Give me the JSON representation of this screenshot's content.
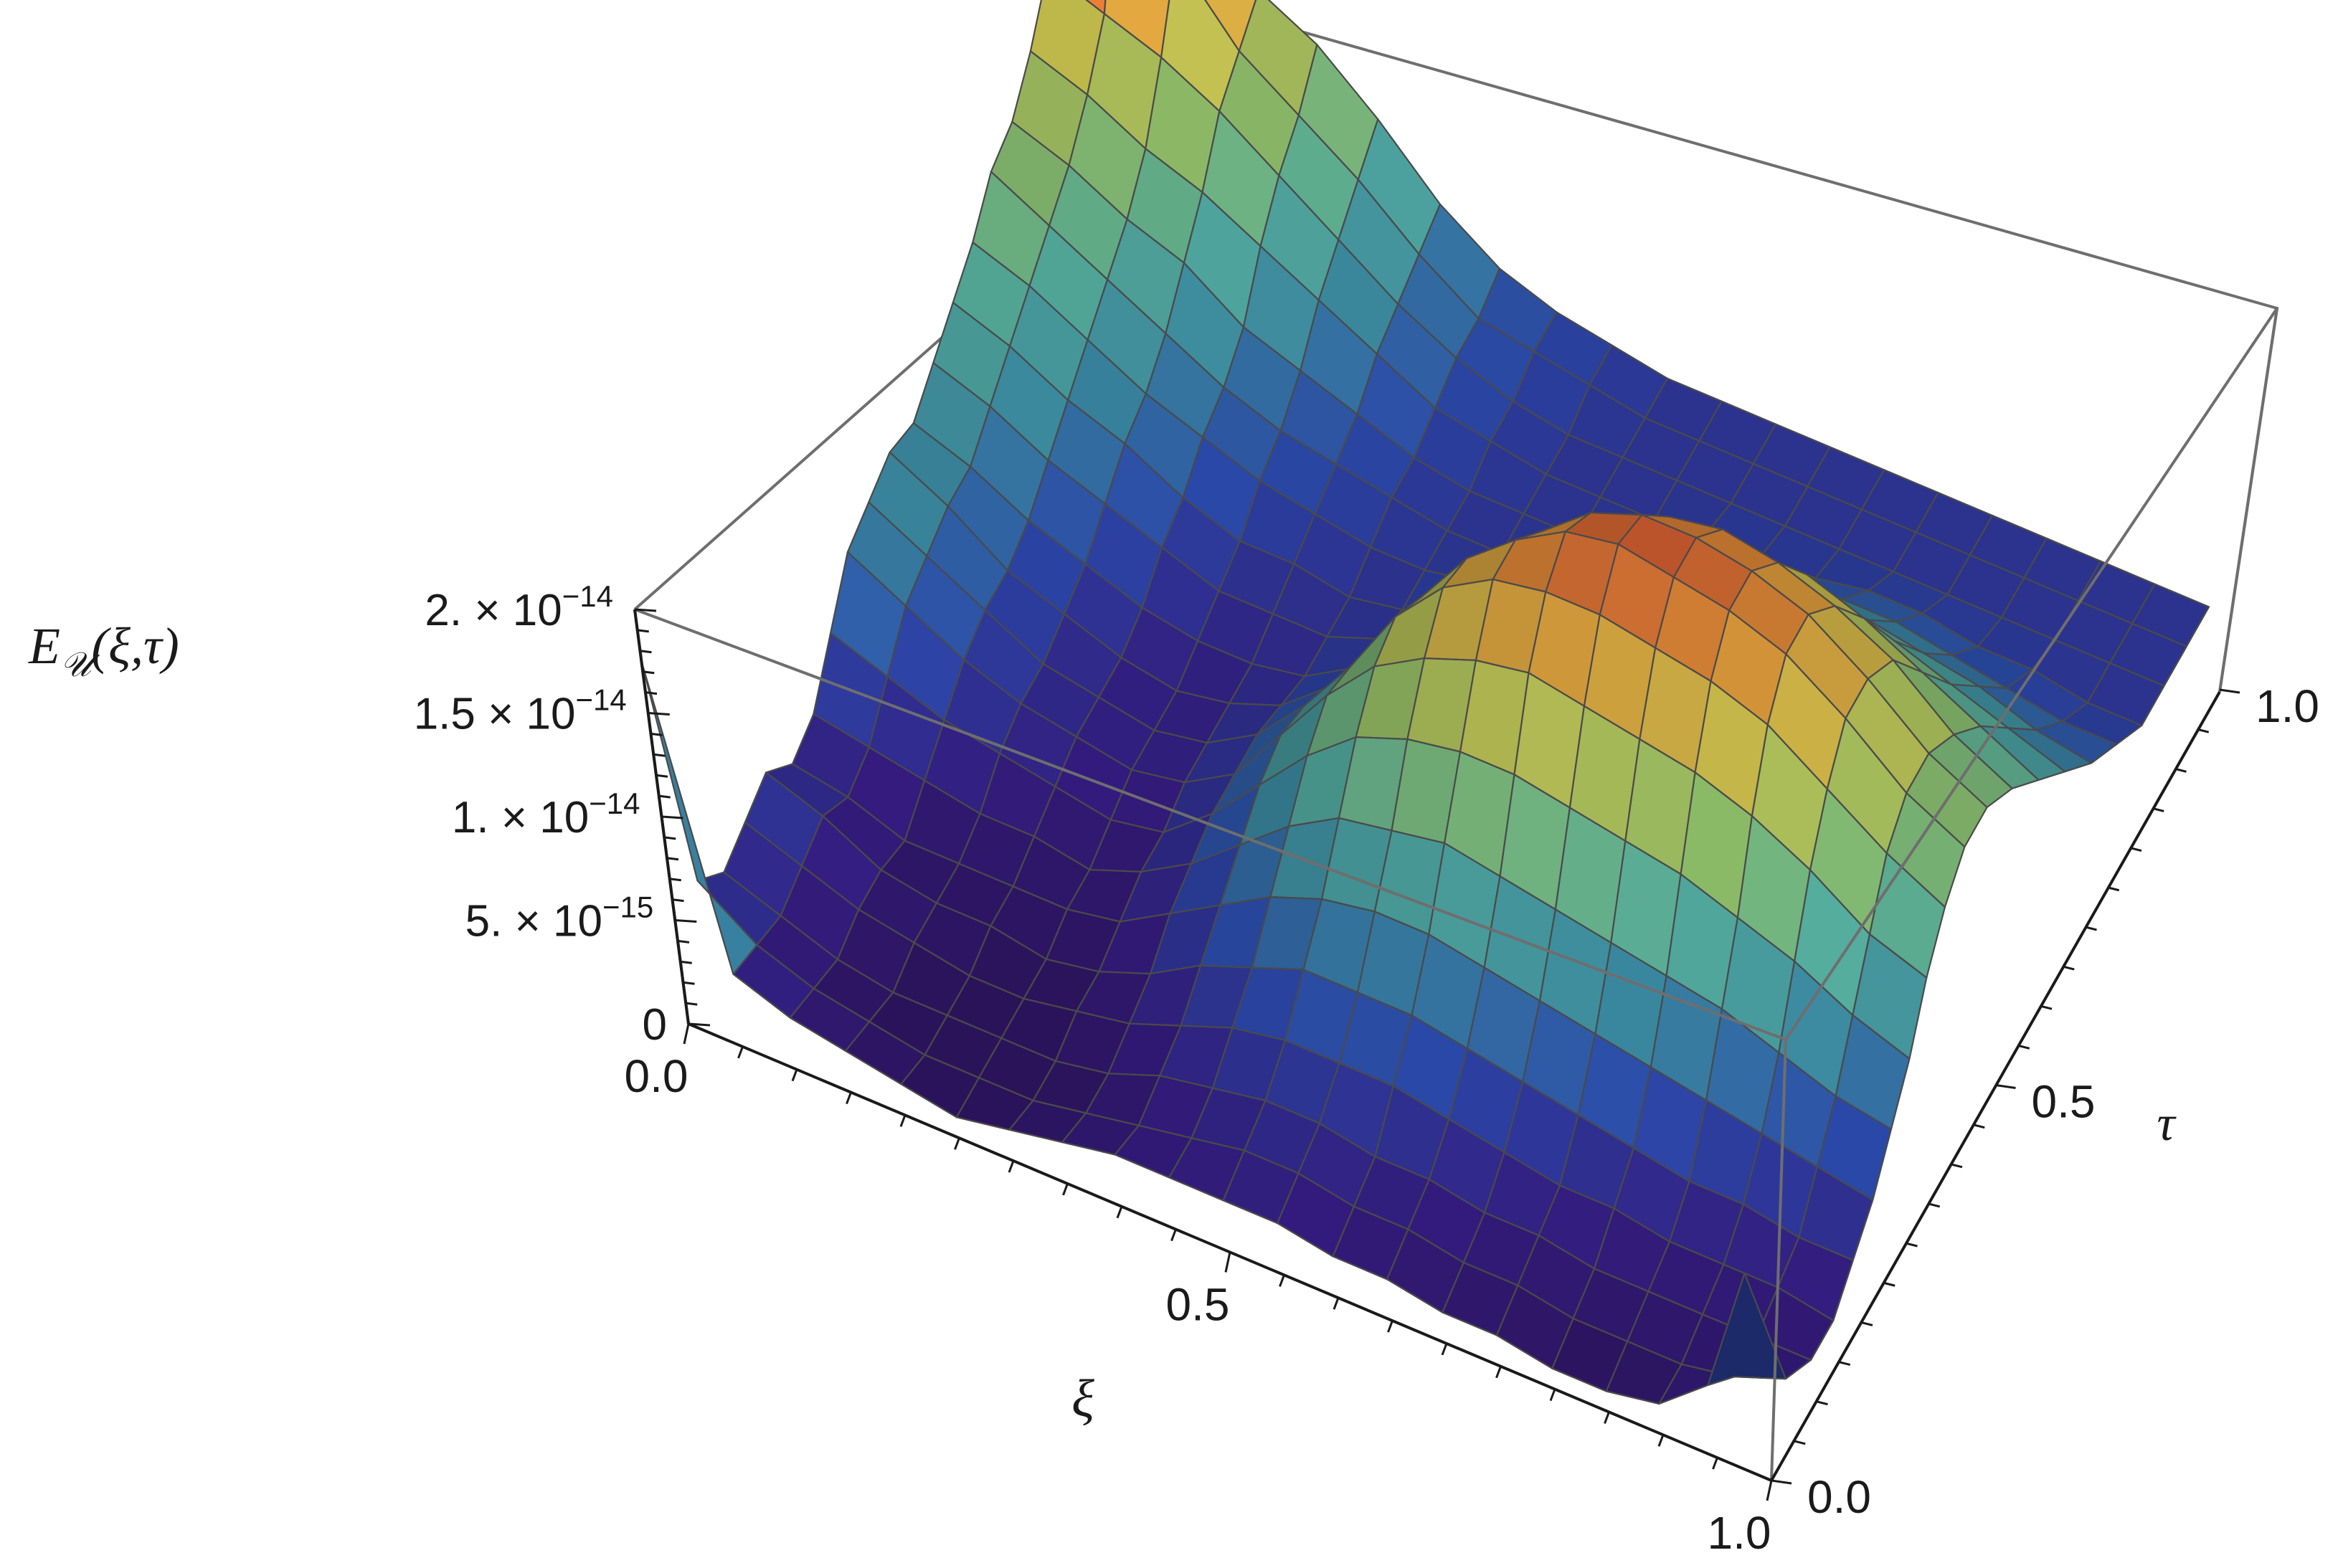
{
  "chart_data": {
    "type": "surface3d",
    "zlabel_main": "E",
    "zlabel_sub": "𝒰",
    "zlabel_args": "(ξ,τ)",
    "xlabel": "ξ",
    "ylabel": "τ",
    "xlim": [
      0,
      1
    ],
    "ylim": [
      0,
      1
    ],
    "zlim": [
      0,
      2e-14
    ],
    "x_ticks": [
      {
        "value": 0.0,
        "label": "0.0"
      },
      {
        "value": 0.5,
        "label": "0.5"
      },
      {
        "value": 1.0,
        "label": "1.0"
      }
    ],
    "y_ticks": [
      {
        "value": 0.0,
        "label": "0.0"
      },
      {
        "value": 0.5,
        "label": "0.5"
      },
      {
        "value": 1.0,
        "label": "1.0"
      }
    ],
    "z_ticks": [
      {
        "value": 0,
        "mant": "0",
        "exp": ""
      },
      {
        "value": 5e-15,
        "mant": "5. × 10",
        "exp": "−15"
      },
      {
        "value": 1e-14,
        "mant": "1. × 10",
        "exp": "−14"
      },
      {
        "value": 1.5e-14,
        "mant": "1.5 × 10",
        "exp": "−14"
      },
      {
        "value": 2e-14,
        "mant": "2. × 10",
        "exp": "−14"
      }
    ],
    "grid_x": [
      0,
      0.05,
      0.1,
      0.15,
      0.2,
      0.25,
      0.3,
      0.35,
      0.4,
      0.45,
      0.5,
      0.55,
      0.6,
      0.65,
      0.7,
      0.75,
      0.8,
      0.85,
      0.9,
      0.95,
      1.0
    ],
    "grid_y": [
      0,
      0.05,
      0.1,
      0.15,
      0.2,
      0.25,
      0.3,
      0.35,
      0.4,
      0.45,
      0.5,
      0.55,
      0.6,
      0.65,
      0.7,
      0.75,
      0.8,
      0.85,
      0.9,
      0.95,
      1.0
    ],
    "z": [
      [
        17.5,
        5.0,
        3.5,
        4.0,
        4.5,
        3.0,
        3.5,
        5.5,
        7.5,
        8.0,
        8.5,
        8.0,
        9.0,
        10.0,
        11.0,
        12.5,
        13.0,
        14.5,
        16.5,
        22.0,
        24.5
      ],
      [
        3.5,
        3.0,
        2.5,
        3.0,
        3.5,
        2.5,
        3.0,
        4.5,
        6.0,
        6.5,
        7.0,
        7.0,
        8.0,
        9.0,
        10.0,
        11.0,
        12.0,
        13.5,
        15.5,
        20.0,
        22.0
      ],
      [
        2.5,
        2.0,
        1.5,
        2.0,
        2.0,
        1.5,
        2.5,
        3.5,
        4.5,
        5.0,
        5.0,
        5.5,
        6.5,
        7.5,
        8.5,
        9.5,
        10.5,
        12.0,
        14.5,
        17.5,
        19.0
      ],
      [
        2.0,
        1.5,
        1.0,
        1.5,
        1.5,
        1.5,
        2.0,
        3.0,
        3.5,
        3.5,
        4.0,
        4.5,
        5.5,
        6.5,
        7.0,
        8.0,
        9.5,
        11.0,
        13.0,
        14.0,
        15.0
      ],
      [
        1.5,
        1.0,
        1.0,
        1.0,
        1.5,
        1.5,
        2.0,
        2.5,
        3.0,
        3.0,
        3.0,
        3.5,
        4.5,
        5.0,
        6.0,
        6.5,
        7.5,
        9.5,
        11.0,
        12.0,
        13.5
      ],
      [
        1.0,
        1.0,
        1.0,
        1.0,
        1.0,
        1.5,
        1.5,
        2.0,
        2.5,
        2.5,
        2.5,
        3.0,
        3.5,
        4.0,
        5.0,
        5.5,
        6.5,
        8.0,
        9.0,
        10.0,
        11.0
      ],
      [
        1.5,
        1.0,
        1.0,
        1.5,
        1.5,
        2.0,
        2.5,
        2.5,
        3.0,
        3.0,
        3.0,
        3.0,
        3.5,
        4.0,
        4.5,
        5.0,
        5.5,
        6.5,
        7.0,
        7.5,
        8.0
      ],
      [
        2.0,
        1.5,
        1.5,
        2.0,
        2.5,
        3.5,
        4.0,
        4.5,
        4.5,
        4.5,
        4.0,
        3.5,
        3.5,
        3.5,
        4.0,
        4.5,
        4.5,
        5.0,
        5.5,
        5.5,
        6.0
      ],
      [
        2.5,
        2.0,
        2.5,
        3.0,
        4.0,
        5.0,
        6.0,
        7.0,
        7.5,
        7.0,
        6.0,
        5.0,
        4.5,
        4.0,
        4.0,
        4.0,
        4.0,
        4.5,
        4.5,
        5.0,
        5.0
      ],
      [
        2.5,
        2.5,
        3.0,
        4.0,
        5.0,
        6.5,
        8.0,
        9.5,
        10.5,
        10.0,
        9.0,
        7.5,
        6.0,
        5.0,
        4.5,
        4.0,
        4.0,
        4.0,
        4.0,
        4.5,
        4.5
      ],
      [
        2.5,
        3.0,
        3.5,
        4.5,
        6.0,
        7.5,
        9.5,
        11.5,
        13.0,
        13.5,
        12.5,
        10.5,
        8.5,
        6.5,
        5.0,
        4.5,
        4.0,
        4.0,
        4.0,
        4.0,
        4.0
      ],
      [
        2.5,
        3.0,
        3.5,
        4.5,
        6.0,
        8.0,
        10.0,
        12.5,
        14.5,
        16.0,
        15.5,
        13.5,
        11.0,
        8.5,
        6.5,
        5.0,
        4.5,
        4.0,
        4.0,
        4.0,
        4.0
      ],
      [
        2.0,
        2.5,
        3.0,
        4.5,
        6.0,
        8.0,
        10.5,
        13.0,
        15.5,
        17.5,
        17.5,
        16.0,
        13.5,
        10.5,
        8.0,
        6.0,
        5.0,
        4.5,
        4.0,
        4.0,
        4.0
      ],
      [
        2.0,
        2.5,
        3.0,
        4.0,
        5.5,
        7.5,
        10.0,
        13.0,
        16.0,
        18.0,
        19.0,
        18.0,
        15.5,
        12.5,
        9.5,
        7.0,
        5.5,
        4.5,
        4.0,
        4.0,
        4.0
      ],
      [
        1.5,
        2.0,
        2.5,
        3.5,
        5.0,
        7.0,
        9.5,
        12.5,
        15.5,
        18.0,
        19.5,
        19.0,
        17.0,
        14.0,
        10.5,
        8.0,
        6.0,
        4.5,
        4.0,
        4.0,
        4.0
      ],
      [
        1.5,
        2.0,
        2.5,
        3.0,
        4.5,
        6.5,
        9.0,
        12.0,
        15.0,
        17.5,
        19.0,
        19.0,
        17.5,
        14.5,
        11.0,
        8.5,
        6.5,
        5.0,
        4.0,
        4.0,
        4.0
      ],
      [
        1.0,
        1.5,
        2.0,
        3.0,
        4.0,
        6.0,
        8.5,
        11.5,
        14.5,
        17.0,
        18.5,
        18.5,
        17.0,
        14.5,
        11.0,
        8.5,
        6.5,
        5.0,
        4.0,
        4.0,
        4.0
      ],
      [
        1.0,
        1.5,
        2.0,
        2.5,
        3.5,
        5.5,
        8.0,
        10.5,
        13.5,
        16.0,
        17.5,
        17.5,
        16.0,
        13.5,
        10.5,
        8.0,
        6.0,
        4.5,
        4.0,
        4.0,
        4.0
      ],
      [
        1.5,
        1.5,
        2.0,
        2.5,
        3.5,
        5.0,
        7.0,
        9.5,
        12.0,
        14.0,
        15.5,
        15.5,
        14.5,
        12.0,
        9.5,
        7.5,
        5.5,
        4.5,
        4.0,
        4.0,
        4.0
      ],
      [
        3.5,
        2.0,
        2.0,
        2.5,
        3.0,
        4.5,
        6.0,
        8.0,
        10.0,
        12.0,
        13.0,
        13.0,
        12.0,
        10.5,
        8.5,
        6.5,
        5.0,
        4.0,
        4.0,
        4.0,
        4.0
      ],
      [
        10.0,
        3.0,
        2.0,
        2.0,
        3.0,
        4.0,
        5.5,
        7.0,
        9.0,
        10.5,
        11.5,
        11.5,
        10.5,
        9.0,
        7.5,
        6.0,
        5.0,
        4.0,
        4.0,
        4.0,
        4.0
      ]
    ],
    "z_scale_note": "z values above are in units of 1e-15",
    "colormap": [
      "#2d1050",
      "#3a1f8e",
      "#2e4fb8",
      "#3d8fa8",
      "#58b3a0",
      "#8fbf6a",
      "#c9c24e",
      "#e59a3a",
      "#d8452f"
    ]
  }
}
